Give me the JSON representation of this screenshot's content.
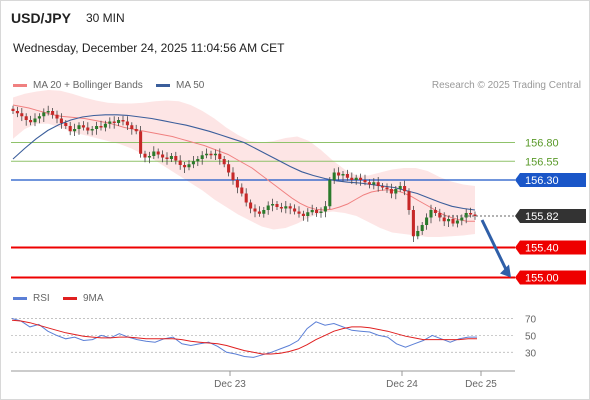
{
  "header": {
    "pair": "USD/JPY",
    "timeframe": "30 MIN",
    "datetime": "Wednesday, December 24, 2025 11:04:56 AM CET"
  },
  "legend": {
    "ma20": "MA 20 + Bollinger Bands",
    "ma50": "MA 50",
    "research": "Research © 2025 Trading Central",
    "rsi": "RSI",
    "ma9": "9MA"
  },
  "colors": {
    "candle_up": "#2b7a2b",
    "candle_down": "#c62828",
    "ma20": "#f08080",
    "ma50": "#3b5e9b",
    "bb_fill": "#fde0e0",
    "level_green": "#8fc26a",
    "level_blue": "#1a56c8",
    "level_red": "#ee0000",
    "current": "#333333",
    "rsi": "#5b7fd6",
    "rsi_ma": "#e02020"
  },
  "chart_data": [
    {
      "type": "candlestick",
      "title": "USD/JPY",
      "timeframe": "30 MIN",
      "x_tick_labels": [
        "Dec 23",
        "Dec 24",
        "Dec 25"
      ],
      "y_range": [
        154.9,
        157.5
      ],
      "levels": [
        {
          "label": "156.80",
          "value": 156.8,
          "kind": "resistance"
        },
        {
          "label": "156.55",
          "value": 156.55,
          "kind": "resistance"
        },
        {
          "label": "156.30",
          "value": 156.3,
          "kind": "pivot"
        },
        {
          "label": "155.40",
          "value": 155.4,
          "kind": "support"
        },
        {
          "label": "155.00",
          "value": 155.0,
          "kind": "support"
        }
      ],
      "current_price": {
        "label": "155.82",
        "value": 155.82
      },
      "forecast_arrow": {
        "direction": "down",
        "from": 155.82,
        "to": 155.0
      },
      "close": [
        157.22,
        157.19,
        157.15,
        157.1,
        157.07,
        157.12,
        157.15,
        157.2,
        157.22,
        157.17,
        157.12,
        157.06,
        157.02,
        156.95,
        156.98,
        157.03,
        157.0,
        156.96,
        156.98,
        157.02,
        157.0,
        157.05,
        157.08,
        157.06,
        157.1,
        157.08,
        157.03,
        156.98,
        156.95,
        156.65,
        156.6,
        156.62,
        156.68,
        156.64,
        156.6,
        156.58,
        156.62,
        156.56,
        156.5,
        156.47,
        156.51,
        156.55,
        156.58,
        156.63,
        156.65,
        156.63,
        156.65,
        156.58,
        156.51,
        156.4,
        156.3,
        156.2,
        156.12,
        156.0,
        155.92,
        155.88,
        155.85,
        155.9,
        155.96,
        155.98,
        155.94,
        155.92,
        155.95,
        155.92,
        155.88,
        155.85,
        155.82,
        155.87,
        155.9,
        155.86,
        155.88,
        155.95,
        156.3,
        156.4,
        156.36,
        156.38,
        156.33,
        156.3,
        156.33,
        156.3,
        156.27,
        156.24,
        156.27,
        156.22,
        156.2,
        156.18,
        156.12,
        156.18,
        156.22,
        156.15,
        155.9,
        155.55,
        155.62,
        155.7,
        155.8,
        155.9,
        155.86,
        155.8,
        155.75,
        155.78,
        155.72,
        155.76,
        155.8,
        155.86,
        155.84,
        155.82
      ],
      "ma20": [
        157.3,
        157.28,
        157.26,
        157.23,
        157.2,
        157.17,
        157.15,
        157.14,
        157.13,
        157.12,
        157.1,
        157.08,
        157.06,
        157.03,
        157.0,
        156.98,
        156.96,
        156.94,
        156.92,
        156.9,
        156.88,
        156.85,
        156.82,
        156.79,
        156.76,
        156.72,
        156.68,
        156.64,
        156.58,
        156.52,
        156.46,
        156.38,
        156.3,
        156.22,
        156.14,
        156.06,
        155.99,
        155.94,
        155.91,
        155.9,
        155.91,
        155.94,
        155.98,
        156.04,
        156.1,
        156.14,
        156.16,
        156.17,
        156.16,
        156.13,
        156.08,
        156.02,
        155.96,
        155.9,
        155.84,
        155.8,
        155.77,
        155.75,
        155.75
      ],
      "ma50": [
        156.58,
        156.72,
        156.85,
        156.96,
        157.04,
        157.1,
        157.14,
        157.16,
        157.17,
        157.17,
        157.16,
        157.14,
        157.12,
        157.09,
        157.06,
        157.03,
        156.99,
        156.95,
        156.9,
        156.85,
        156.8,
        156.72,
        156.64,
        156.56,
        156.48,
        156.41,
        156.36,
        156.32,
        156.29,
        156.27,
        156.26,
        156.24,
        156.22,
        156.2,
        156.16,
        156.12,
        156.06,
        156.0,
        155.95,
        155.92,
        155.9
      ],
      "bb_upper": [
        157.4,
        157.45,
        157.48,
        157.5,
        157.49,
        157.45,
        157.4,
        157.36,
        157.33,
        157.32,
        157.32,
        157.33,
        157.35,
        157.36,
        157.35,
        157.3,
        157.22,
        157.12,
        157.0,
        156.9,
        156.82,
        156.8,
        156.82,
        156.86,
        156.88,
        156.82,
        156.7,
        156.56,
        156.44,
        156.36,
        156.36,
        156.4,
        156.44,
        156.46,
        156.46,
        156.42,
        156.34,
        156.28,
        156.24,
        156.22
      ],
      "bb_lower": [
        156.85,
        156.98,
        157.05,
        157.05,
        157.0,
        156.94,
        156.9,
        156.86,
        156.82,
        156.78,
        156.72,
        156.64,
        156.56,
        156.46,
        156.36,
        156.26,
        156.16,
        156.04,
        155.94,
        155.84,
        155.76,
        155.68,
        155.64,
        155.66,
        155.72,
        155.8,
        155.86,
        155.88,
        155.86,
        155.82,
        155.74,
        155.66,
        155.6,
        155.58,
        155.56,
        155.54,
        155.54,
        155.55,
        155.56,
        155.58
      ]
    },
    {
      "type": "line",
      "title": "RSI",
      "series": [
        {
          "name": "RSI",
          "values": [
            70,
            67,
            60,
            63,
            55,
            50,
            46,
            48,
            44,
            45,
            50,
            47,
            52,
            48,
            45,
            43,
            42,
            46,
            48,
            40,
            38,
            40,
            42,
            37,
            30,
            28,
            25,
            24,
            27,
            30,
            34,
            38,
            44,
            58,
            66,
            62,
            64,
            60,
            56,
            55,
            54,
            50,
            48,
            40,
            36,
            40,
            44,
            50,
            46,
            42,
            46,
            48,
            48
          ]
        },
        {
          "name": "9MA",
          "values": [
            68,
            67,
            65,
            62,
            59,
            56,
            53,
            51,
            49,
            48,
            47,
            47,
            48,
            48,
            47,
            46,
            46,
            46,
            46,
            45,
            43,
            42,
            41,
            40,
            38,
            35,
            32,
            30,
            28,
            28,
            29,
            31,
            34,
            39,
            45,
            50,
            55,
            58,
            60,
            60,
            59,
            57,
            55,
            52,
            49,
            47,
            45,
            45,
            45,
            45,
            45,
            46,
            46
          ]
        }
      ],
      "ylim": [
        15,
        80
      ],
      "y_tick_labels": [
        "70",
        "50",
        "30"
      ],
      "y_ticks": [
        70,
        50,
        30
      ]
    }
  ]
}
